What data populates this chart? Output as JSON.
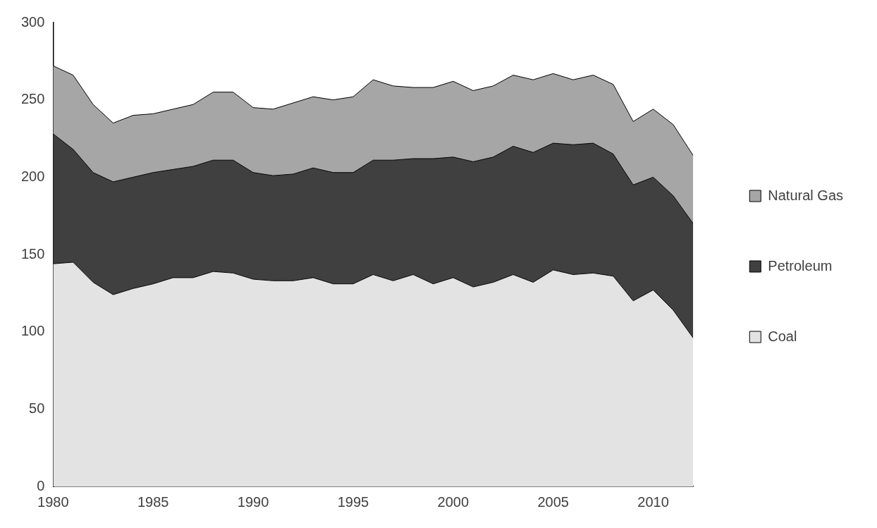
{
  "chart_data": {
    "type": "area",
    "stacked": true,
    "x": [
      1980,
      1981,
      1982,
      1983,
      1984,
      1985,
      1986,
      1987,
      1988,
      1989,
      1990,
      1991,
      1992,
      1993,
      1994,
      1995,
      1996,
      1997,
      1998,
      1999,
      2000,
      2001,
      2002,
      2003,
      2004,
      2005,
      2006,
      2007,
      2008,
      2009,
      2010,
      2011,
      2012
    ],
    "series": [
      {
        "name": "Coal",
        "color": "#e3e3e3",
        "values": [
          144,
          145,
          132,
          124,
          128,
          131,
          135,
          135,
          139,
          138,
          134,
          133,
          133,
          135,
          131,
          131,
          137,
          133,
          137,
          131,
          135,
          129,
          132,
          137,
          132,
          140,
          137,
          138,
          136,
          120,
          127,
          114,
          96
        ]
      },
      {
        "name": "Petroleum",
        "color": "#404040",
        "values": [
          84,
          73,
          71,
          73,
          72,
          72,
          70,
          72,
          72,
          73,
          69,
          68,
          69,
          71,
          72,
          72,
          74,
          78,
          75,
          81,
          78,
          81,
          81,
          83,
          84,
          82,
          84,
          84,
          79,
          75,
          73,
          74,
          74
        ]
      },
      {
        "name": "Natural Gas",
        "color": "#a6a6a6",
        "values": [
          44,
          48,
          44,
          38,
          40,
          38,
          39,
          40,
          44,
          44,
          42,
          43,
          46,
          46,
          47,
          49,
          52,
          48,
          46,
          46,
          49,
          46,
          46,
          46,
          47,
          45,
          42,
          44,
          45,
          41,
          44,
          46,
          44
        ]
      }
    ],
    "xlim": [
      1980,
      2012
    ],
    "xticks": [
      1980,
      1985,
      1990,
      1995,
      2000,
      2005,
      2010
    ],
    "ylim": [
      0,
      300
    ],
    "yticks": [
      0,
      50,
      100,
      150,
      200,
      250,
      300
    ],
    "legend": "right",
    "grid": false
  }
}
